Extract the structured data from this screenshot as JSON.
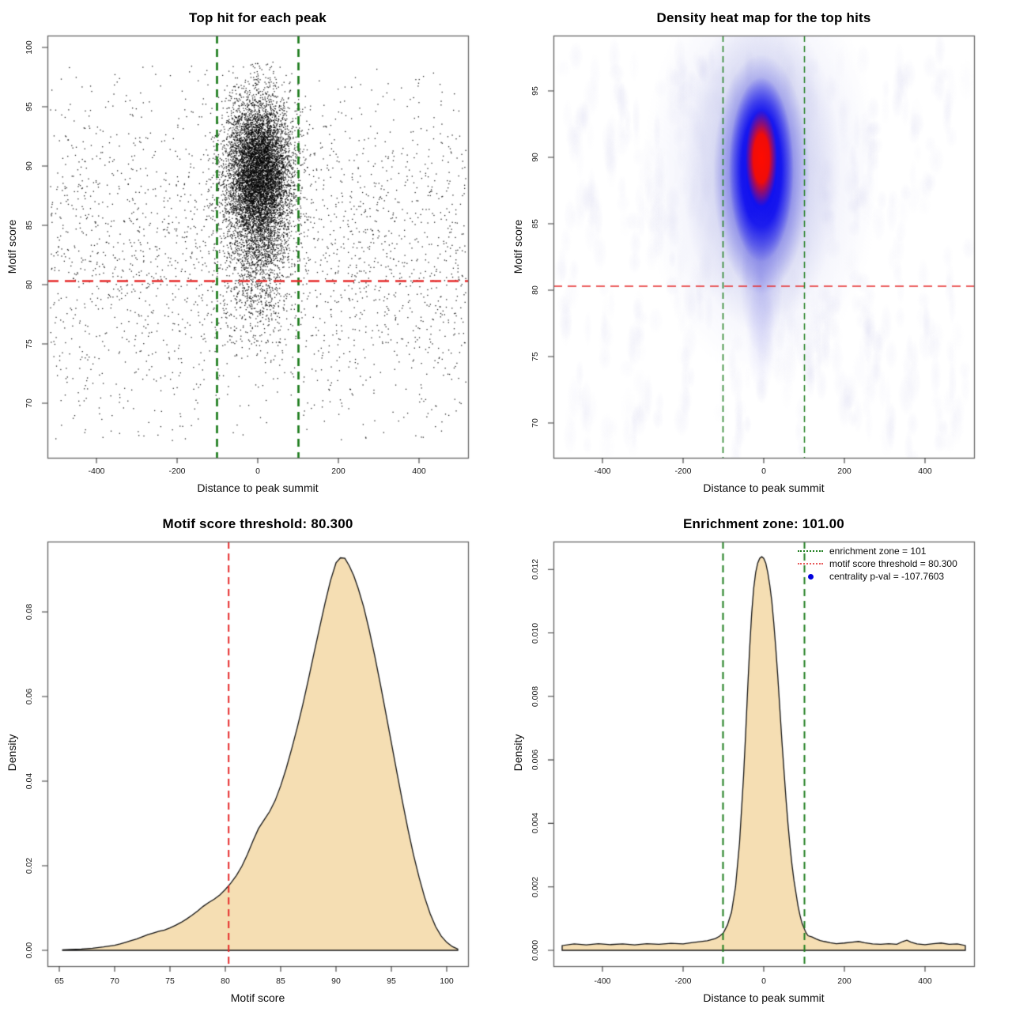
{
  "figure": {
    "background": "#ffffff",
    "motif_score_threshold": 80.3,
    "enrichment_zone_halfwidth": 101,
    "centrality_p_val": -107.7603
  },
  "colors": {
    "green_line": "#1f7e1f",
    "red_line": "#e62b2b",
    "wheat_fill": "#f5deb3",
    "curve_stroke": "#141414",
    "point_color": "#000000",
    "frame": "#666666",
    "blue_dot": "#0000dd",
    "heat_halo": "#b9bce8",
    "heat_blue_outer": "#4040e0",
    "heat_blue_deep": "#0808f0",
    "heat_red_core": "#ff0d00",
    "heat_noise": "#b9b9e4"
  },
  "chart_data": [
    {
      "type": "scatter",
      "title": "Top hit for each peak",
      "xlabel": "Distance to peak summit",
      "ylabel": "Motif score",
      "x_ticks": [
        -400,
        -200,
        0,
        200,
        400
      ],
      "x_tick_labels": [
        "-400",
        "-200",
        "0",
        "200",
        "400"
      ],
      "y_ticks": [
        70,
        75,
        80,
        85,
        90,
        95,
        100
      ],
      "y_tick_labels": [
        "70",
        "75",
        "80",
        "85",
        "90",
        "95",
        "100"
      ],
      "xlim": [
        -522,
        522
      ],
      "ylim": [
        65.4,
        101
      ],
      "enrichment_zone": [
        -101,
        101
      ],
      "score_threshold": 80.3,
      "legend_position": "none",
      "grid": false,
      "generator": {
        "seed": 42,
        "cluster": {
          "n": 8600,
          "x_mean": 2,
          "x_sd": 40,
          "x_clip": 145,
          "y_main_mean": 89.7,
          "y_main_sd": 3.0,
          "y_tail_mean": 84.3,
          "y_tail_sd": 4.3,
          "tail_frac": 0.22,
          "y_min": 67.2,
          "y_max": 99.4
        },
        "background": {
          "n": 2350,
          "x_min": -515,
          "x_max": 515,
          "y_mean": 83,
          "y_sd": 7.8,
          "y_min": 66.8,
          "y_max": 98.5
        }
      }
    },
    {
      "type": "heatmap",
      "title": "Density heat map for the top hits",
      "xlabel": "Distance to peak summit",
      "ylabel": "Motif score",
      "x_ticks": [
        -400,
        -200,
        0,
        200,
        400
      ],
      "x_tick_labels": [
        "-400",
        "-200",
        "0",
        "200",
        "400"
      ],
      "y_ticks": [
        70,
        75,
        80,
        85,
        90,
        95
      ],
      "y_tick_labels": [
        "70",
        "75",
        "80",
        "85",
        "90",
        "95"
      ],
      "xlim": [
        -522,
        522
      ],
      "ylim": [
        67.4,
        99.2
      ],
      "enrichment_zone": [
        -101,
        101
      ],
      "score_threshold": 80.3,
      "density_peak": {
        "x": -6,
        "y": 89.8
      },
      "noise_seed": 777,
      "noise_blobs": 260
    },
    {
      "type": "area",
      "title": "Motif score threshold: 80.300",
      "xlabel": "Motif score",
      "ylabel": "Density",
      "x_ticks": [
        65,
        70,
        75,
        80,
        85,
        90,
        95,
        100
      ],
      "x_tick_labels": [
        "65",
        "70",
        "75",
        "80",
        "85",
        "90",
        "95",
        "100"
      ],
      "y_ticks": [
        0,
        0.02,
        0.04,
        0.06,
        0.08
      ],
      "y_tick_labels": [
        "0.00",
        "0.02",
        "0.04",
        "0.06",
        "0.08"
      ],
      "xlim": [
        63.9,
        101.9
      ],
      "ylim": [
        0,
        0.0966
      ],
      "threshold": 80.3,
      "curve": [
        [
          65.3,
          0.0001
        ],
        [
          66,
          0.0002
        ],
        [
          67,
          0.0003
        ],
        [
          68,
          0.0005
        ],
        [
          69,
          0.0008
        ],
        [
          70,
          0.0012
        ],
        [
          70.5,
          0.0015
        ],
        [
          71,
          0.0019
        ],
        [
          71.5,
          0.0023
        ],
        [
          72,
          0.0027
        ],
        [
          72.5,
          0.0032
        ],
        [
          73,
          0.0037
        ],
        [
          73.5,
          0.0041
        ],
        [
          74,
          0.0045
        ],
        [
          74.5,
          0.0048
        ],
        [
          75,
          0.0053
        ],
        [
          75.5,
          0.0059
        ],
        [
          76,
          0.0066
        ],
        [
          76.5,
          0.0074
        ],
        [
          77,
          0.0083
        ],
        [
          77.5,
          0.0093
        ],
        [
          78,
          0.0104
        ],
        [
          78.5,
          0.0113
        ],
        [
          79,
          0.0121
        ],
        [
          79.5,
          0.0131
        ],
        [
          80,
          0.0144
        ],
        [
          80.5,
          0.0159
        ],
        [
          81,
          0.0177
        ],
        [
          81.5,
          0.0199
        ],
        [
          82,
          0.0227
        ],
        [
          82.5,
          0.0259
        ],
        [
          83,
          0.0288
        ],
        [
          83.5,
          0.0308
        ],
        [
          84,
          0.0328
        ],
        [
          84.5,
          0.0354
        ],
        [
          85,
          0.0389
        ],
        [
          85.5,
          0.043
        ],
        [
          86,
          0.0477
        ],
        [
          86.5,
          0.0527
        ],
        [
          87,
          0.0581
        ],
        [
          87.5,
          0.064
        ],
        [
          88,
          0.0701
        ],
        [
          88.5,
          0.0761
        ],
        [
          89,
          0.082
        ],
        [
          89.5,
          0.0874
        ],
        [
          90,
          0.0916
        ],
        [
          90.4,
          0.0928
        ],
        [
          90.8,
          0.0927
        ],
        [
          91.2,
          0.0909
        ],
        [
          91.6,
          0.0886
        ],
        [
          92,
          0.0856
        ],
        [
          92.5,
          0.0812
        ],
        [
          93,
          0.0757
        ],
        [
          93.5,
          0.0696
        ],
        [
          94,
          0.063
        ],
        [
          94.5,
          0.0561
        ],
        [
          95,
          0.0491
        ],
        [
          95.5,
          0.0421
        ],
        [
          96,
          0.0352
        ],
        [
          96.5,
          0.0286
        ],
        [
          97,
          0.0226
        ],
        [
          97.5,
          0.0173
        ],
        [
          98,
          0.0126
        ],
        [
          98.5,
          0.0087
        ],
        [
          99,
          0.0056
        ],
        [
          99.5,
          0.0034
        ],
        [
          100,
          0.0019
        ],
        [
          100.5,
          0.0009
        ],
        [
          101,
          0.0003
        ]
      ]
    },
    {
      "type": "area",
      "title": "Enrichment zone: 101.00",
      "xlabel": "Distance to peak summit",
      "ylabel": "Density",
      "x_ticks": [
        -400,
        -200,
        0,
        200,
        400
      ],
      "x_tick_labels": [
        "-400",
        "-200",
        "0",
        "200",
        "400"
      ],
      "y_ticks": [
        0,
        0.002,
        0.004,
        0.006,
        0.008,
        0.01,
        0.012
      ],
      "y_tick_labels": [
        "0.000",
        "0.002",
        "0.004",
        "0.006",
        "0.008",
        "0.010",
        "0.012"
      ],
      "xlim": [
        -525,
        525
      ],
      "ylim": [
        0,
        0.0129
      ],
      "enrichment_zone": [
        -101,
        101
      ],
      "curve": [
        [
          -500,
          0.00015
        ],
        [
          -470,
          0.0002
        ],
        [
          -440,
          0.00017
        ],
        [
          -410,
          0.00021
        ],
        [
          -380,
          0.00018
        ],
        [
          -350,
          0.0002
        ],
        [
          -320,
          0.00017
        ],
        [
          -290,
          0.00021
        ],
        [
          -260,
          0.00019
        ],
        [
          -230,
          0.00022
        ],
        [
          -200,
          0.0002
        ],
        [
          -180,
          0.00024
        ],
        [
          -160,
          0.00027
        ],
        [
          -140,
          0.0003
        ],
        [
          -120,
          0.00037
        ],
        [
          -110,
          0.00044
        ],
        [
          -100,
          0.00055
        ],
        [
          -90,
          0.0008
        ],
        [
          -80,
          0.0012
        ],
        [
          -70,
          0.002
        ],
        [
          -60,
          0.0034
        ],
        [
          -50,
          0.0055
        ],
        [
          -45,
          0.0068
        ],
        [
          -40,
          0.0082
        ],
        [
          -35,
          0.0095
        ],
        [
          -30,
          0.0106
        ],
        [
          -25,
          0.0114
        ],
        [
          -20,
          0.0119
        ],
        [
          -15,
          0.0122
        ],
        [
          -10,
          0.01235
        ],
        [
          -5,
          0.0124
        ],
        [
          0,
          0.01235
        ],
        [
          5,
          0.0122
        ],
        [
          10,
          0.0119
        ],
        [
          15,
          0.0115
        ],
        [
          20,
          0.011
        ],
        [
          25,
          0.0103
        ],
        [
          30,
          0.0095
        ],
        [
          35,
          0.0086
        ],
        [
          40,
          0.0076
        ],
        [
          45,
          0.0066
        ],
        [
          50,
          0.0057
        ],
        [
          55,
          0.0048
        ],
        [
          60,
          0.004
        ],
        [
          65,
          0.0033
        ],
        [
          70,
          0.0027
        ],
        [
          75,
          0.0022
        ],
        [
          80,
          0.0018
        ],
        [
          85,
          0.0014
        ],
        [
          90,
          0.0011
        ],
        [
          95,
          0.00085
        ],
        [
          100,
          0.0007
        ],
        [
          105,
          0.00055
        ],
        [
          110,
          0.00046
        ],
        [
          120,
          0.00042
        ],
        [
          130,
          0.00036
        ],
        [
          140,
          0.00031
        ],
        [
          150,
          0.00028
        ],
        [
          165,
          0.00024
        ],
        [
          180,
          0.00021
        ],
        [
          200,
          0.00023
        ],
        [
          220,
          0.00026
        ],
        [
          235,
          0.00028
        ],
        [
          250,
          0.00024
        ],
        [
          270,
          0.0002
        ],
        [
          290,
          0.00019
        ],
        [
          310,
          0.00021
        ],
        [
          330,
          0.00019
        ],
        [
          345,
          0.00028
        ],
        [
          355,
          0.00032
        ],
        [
          365,
          0.00026
        ],
        [
          380,
          0.0002
        ],
        [
          400,
          0.00018
        ],
        [
          420,
          0.00021
        ],
        [
          440,
          0.00023
        ],
        [
          460,
          0.00019
        ],
        [
          480,
          0.0002
        ],
        [
          500,
          0.00015
        ]
      ],
      "legend": {
        "position": "top-right",
        "items": [
          {
            "swatch": "green-dotted-line",
            "label": "enrichment zone = 101"
          },
          {
            "swatch": "red-dotted-line",
            "label": "motif score threshold = 80.300"
          },
          {
            "swatch": "blue-dot",
            "label": "centrality p-val = -107.7603"
          }
        ]
      }
    }
  ]
}
